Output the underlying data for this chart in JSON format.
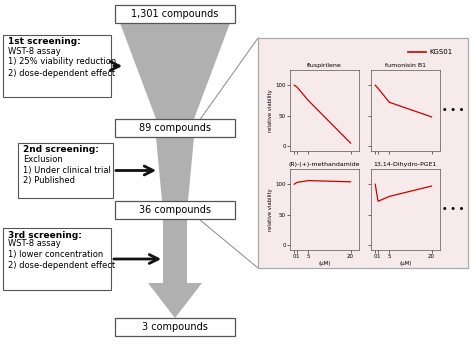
{
  "bg_color": "#ffffff",
  "funnel_color": "#b0b0b0",
  "arrow_color": "#111111",
  "box_bg": "#ffffff",
  "box_edge": "#555555",
  "panel_bg": "#f7eaea",
  "panel_edge": "#aaaaaa",
  "red_line": "#cc0000",
  "labels": {
    "box1": "1,301 compounds",
    "box2": "89 compounds",
    "box3": "36 compounds",
    "box4": "3 compounds"
  },
  "s1_title": "1st screening:",
  "s1_super": "st",
  "s1_lines": [
    "WST-8 assay",
    "1) 25% viability reduction",
    "2) dose-dependent effect"
  ],
  "s2_title": "2nd screening:",
  "s2_lines": [
    "Exclusion",
    "1) Under clinical trial",
    "2) Published"
  ],
  "s3_title": "3rd screening:",
  "s3_lines": [
    "WST-8 assay",
    "1) lower concentration",
    "2) dose-dependent effect"
  ],
  "legend_label": "KGS01",
  "ylabel_viability": "relative viability",
  "xlabel_uM": "(μM)",
  "curve1_x": [
    0,
    1,
    5,
    20
  ],
  "curve1_y": [
    100,
    97,
    75,
    5
  ],
  "curve2_x": [
    0,
    1,
    5,
    20
  ],
  "curve2_y": [
    100,
    95,
    72,
    48
  ],
  "curve3_x": [
    0,
    1,
    5,
    20
  ],
  "curve3_y": [
    100,
    103,
    106,
    104
  ],
  "curve4_x": [
    0,
    1,
    5,
    20
  ],
  "curve4_y": [
    100,
    72,
    80,
    97
  ],
  "dots": "• • •"
}
